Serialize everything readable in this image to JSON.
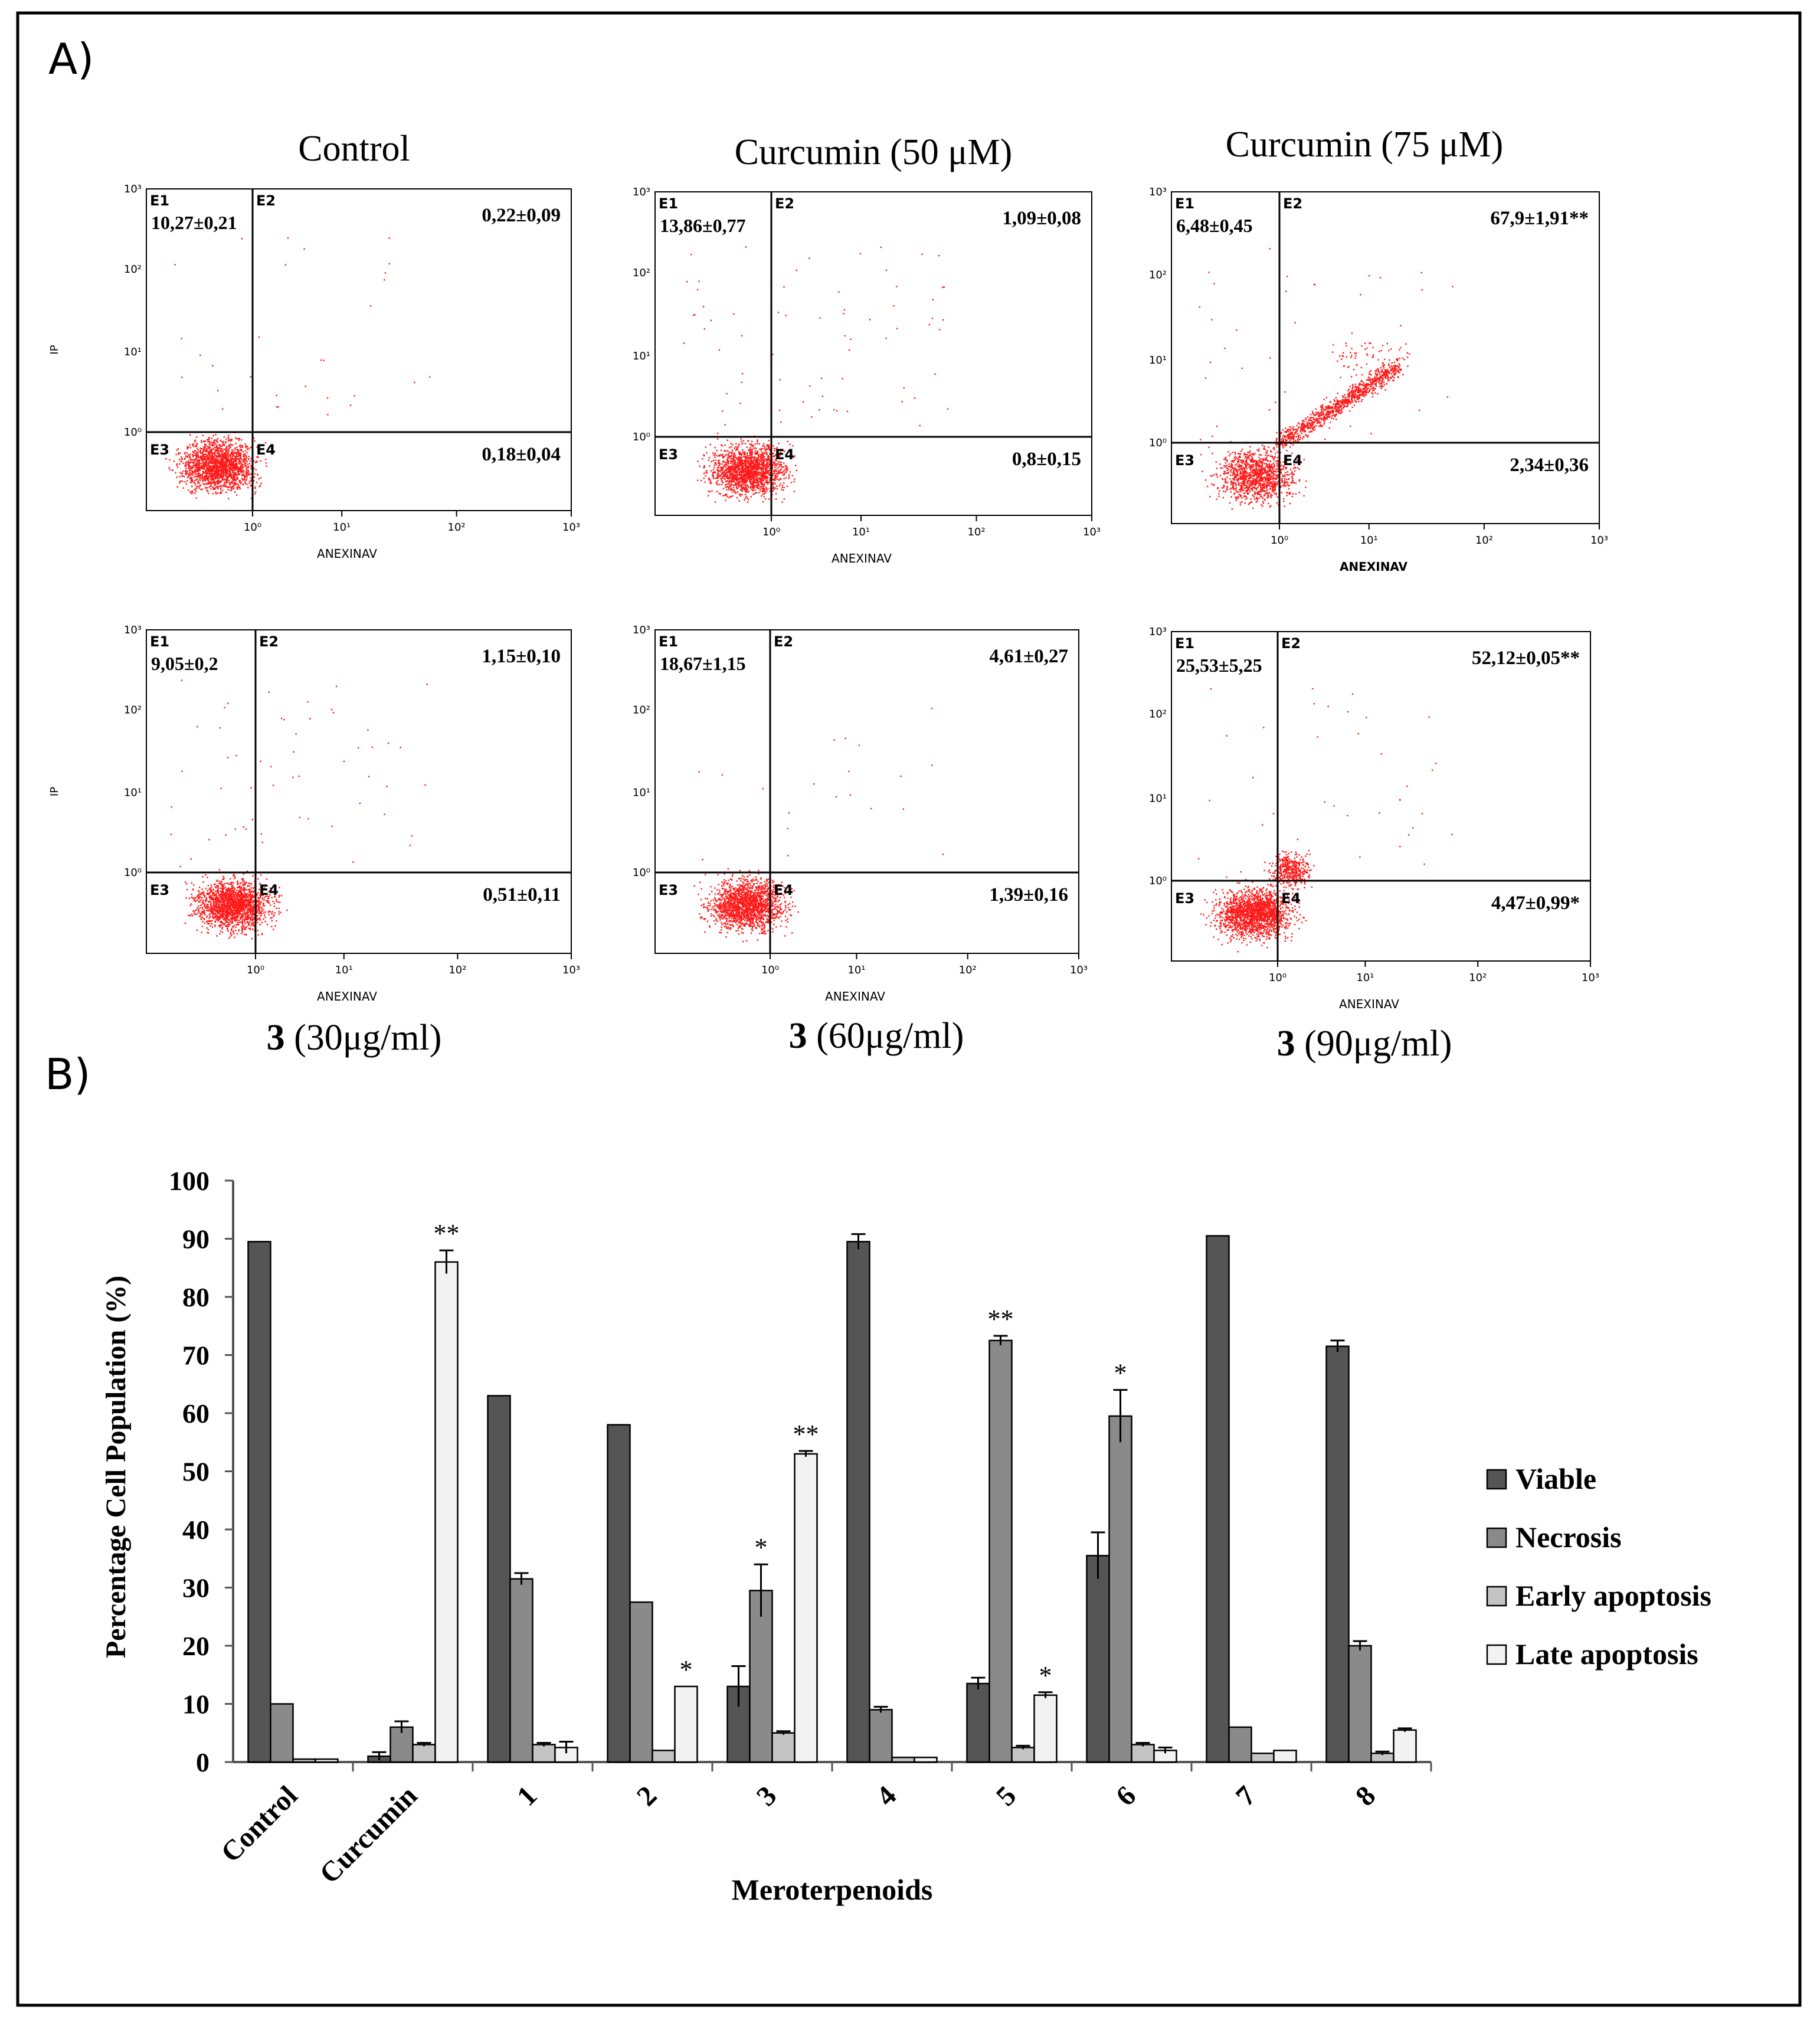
{
  "panel_a": {
    "label": "A)",
    "x_axis_label": "ANEXINAV",
    "x_ticks": [
      "10⁰",
      "10¹",
      "10²",
      "10³"
    ],
    "y_axis_label": "IP",
    "y_ticks": [
      "10⁰",
      "10¹",
      "10²",
      "10³"
    ],
    "quadrant_labels": [
      "E1",
      "E2",
      "E3",
      "E4"
    ],
    "plots": [
      {
        "title": "Control",
        "bold_prefix": "",
        "q1": "10,27±0,21",
        "q2": "0,22±0,09",
        "q4": "0,18±0,04",
        "shape": "control"
      },
      {
        "title": "Curcumin (50 μM)",
        "bold_prefix": "",
        "q1": "13,86±0,77",
        "q2": "1,09±0,08",
        "q4": "0,8±0,15",
        "shape": "cur50"
      },
      {
        "title": "Curcumin (75 μM)",
        "bold_prefix": "",
        "q1": "6,48±0,45",
        "q2": "67,9±1,91**",
        "q4": "2,34±0,36",
        "shape": "cur75"
      },
      {
        "title": " (30μg/ml)",
        "bold_prefix": "3",
        "q1": "9,05±0,2",
        "q2": "1,15±0,10",
        "q4": "0,51±0,11",
        "shape": "m30"
      },
      {
        "title": " (60μg/ml)",
        "bold_prefix": "3",
        "q1": "18,67±1,15",
        "q2": "4,61±0,27",
        "q4": "1,39±0,16",
        "shape": "m60"
      },
      {
        "title": " (90μg/ml)",
        "bold_prefix": "3",
        "q1": "25,53±5,25",
        "q2": "52,12±0,05**",
        "q4": "4,47±0,99*",
        "shape": "m90"
      }
    ]
  },
  "chart_data": {
    "type": "bar",
    "panel_label": "B)",
    "xlabel": "Meroterpenoids",
    "ylabel": "Percentage Cell Population (%)",
    "ylim": [
      0,
      100
    ],
    "y_ticks": [
      "0",
      "10",
      "20",
      "30",
      "40",
      "50",
      "60",
      "70",
      "80",
      "90",
      "100"
    ],
    "categories": [
      "Control",
      "Curcumin",
      "1",
      "2",
      "3",
      "4",
      "5",
      "6",
      "7",
      "8"
    ],
    "legend_position": "right",
    "series": [
      {
        "name": "Viable",
        "color": "#555555",
        "values": [
          89.5,
          1.0,
          63.0,
          58.0,
          13.0,
          89.5,
          13.5,
          35.5,
          90.5,
          71.5
        ],
        "errors": [
          0,
          0.7,
          0,
          0,
          3.5,
          1.3,
          1.0,
          4.0,
          0,
          1.0
        ],
        "marks": [
          "",
          "",
          "",
          "",
          "",
          "",
          "",
          "",
          "",
          ""
        ]
      },
      {
        "name": "Necrosis",
        "color": "#8a8a8a",
        "values": [
          10.0,
          6.0,
          31.5,
          27.5,
          29.5,
          9.0,
          72.5,
          59.5,
          6.0,
          20.0
        ],
        "errors": [
          0,
          1.0,
          1.0,
          0,
          4.5,
          0.5,
          0.8,
          4.5,
          0,
          0.8
        ],
        "marks": [
          "",
          "",
          "",
          "",
          "*",
          "",
          "**",
          "*",
          "",
          ""
        ]
      },
      {
        "name": "Early apoptosis",
        "color": "#c4c4c4",
        "values": [
          0.5,
          3.0,
          3.0,
          2.0,
          5.0,
          0.8,
          2.5,
          3.0,
          1.5,
          1.5
        ],
        "errors": [
          0,
          0.3,
          0.3,
          0,
          0.3,
          0,
          0.3,
          0.3,
          0,
          0.3
        ],
        "marks": [
          "",
          "",
          "",
          "",
          "",
          "",
          "",
          "",
          "",
          ""
        ]
      },
      {
        "name": "Late apoptosis",
        "color": "#f2f2f2",
        "values": [
          0.5,
          86.0,
          2.5,
          13.0,
          53.0,
          0.8,
          11.5,
          2.0,
          2.0,
          5.5
        ],
        "errors": [
          0,
          2.0,
          1.0,
          0,
          0.5,
          0,
          0.5,
          0.5,
          0,
          0.3
        ],
        "marks": [
          "",
          "**",
          "",
          "*",
          "**",
          "",
          "*",
          "",
          "",
          ""
        ]
      }
    ]
  }
}
